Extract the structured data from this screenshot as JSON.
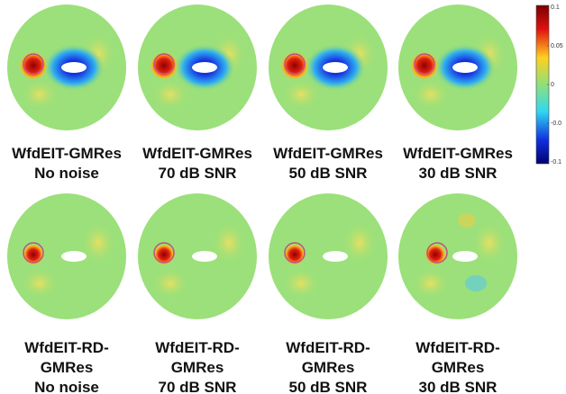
{
  "panels": [
    {
      "caption": [
        "WfdEIT-GMRes",
        "No noise"
      ]
    },
    {
      "caption": [
        "WfdEIT-GMRes",
        "70 dB SNR"
      ]
    },
    {
      "caption": [
        "WfdEIT-GMRes",
        "50 dB SNR"
      ]
    },
    {
      "caption": [
        "WfdEIT-GMRes",
        "30 dB SNR"
      ]
    },
    {
      "caption": [
        "WfdEIT-RD-",
        "GMRes",
        "No noise"
      ]
    },
    {
      "caption": [
        "WfdEIT-RD-",
        "GMRes",
        "70 dB SNR"
      ]
    },
    {
      "caption": [
        "WfdEIT-RD-",
        "GMRes",
        "50 dB SNR"
      ]
    },
    {
      "caption": [
        "WfdEIT-RD-",
        "GMRes",
        "30 dB SNR"
      ]
    }
  ],
  "colorbar": {
    "ticks": [
      {
        "value": 0.1,
        "label": "0.1"
      },
      {
        "value": 0.05,
        "label": "0.05"
      },
      {
        "value": 0,
        "label": "0"
      },
      {
        "value": -0.05,
        "label": "-0.0"
      },
      {
        "value": -0.1,
        "label": "-0.1"
      }
    ]
  }
}
